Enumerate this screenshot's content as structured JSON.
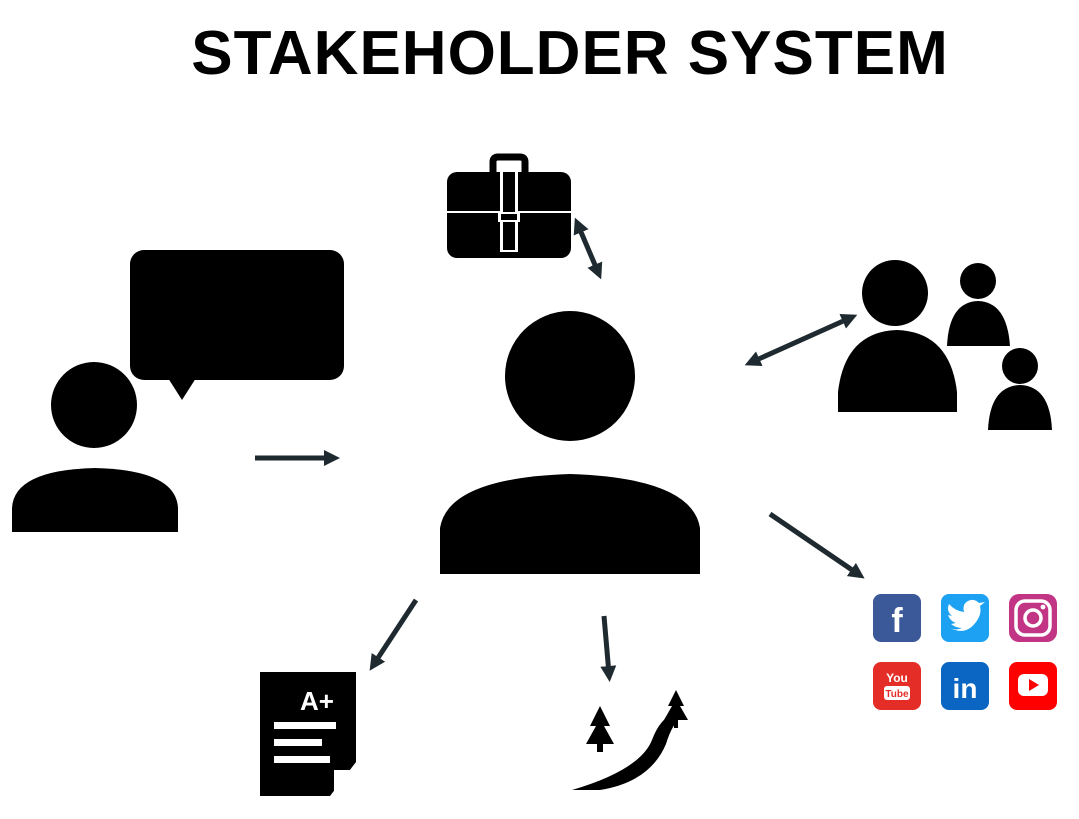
{
  "title": "STAKEHOLDER SYSTEM",
  "colors": {
    "ink": "#000000",
    "arrow": "#1f2a30",
    "facebook": "#3b5998",
    "twitter": "#1da1f2",
    "instagram": "#c13584",
    "youtube_logo": "#e52d27",
    "linkedin": "#0a66c2",
    "youtube_play": "#ff0000"
  },
  "icons": {
    "speaker": "person-with-speech-bubble-icon",
    "center": "central-person-icon",
    "briefcase": "briefcase-icon",
    "group": "people-group-icon",
    "grade": "graded-document-icon",
    "path": "winding-road-with-trees-icon",
    "social": [
      "facebook-icon",
      "twitter-icon",
      "instagram-icon",
      "youtube-logo-icon",
      "linkedin-icon",
      "youtube-play-icon"
    ]
  },
  "labels": {
    "grade": "A+",
    "youtube_text": "You Tube",
    "linkedin_text": "in",
    "facebook_text": "f"
  }
}
